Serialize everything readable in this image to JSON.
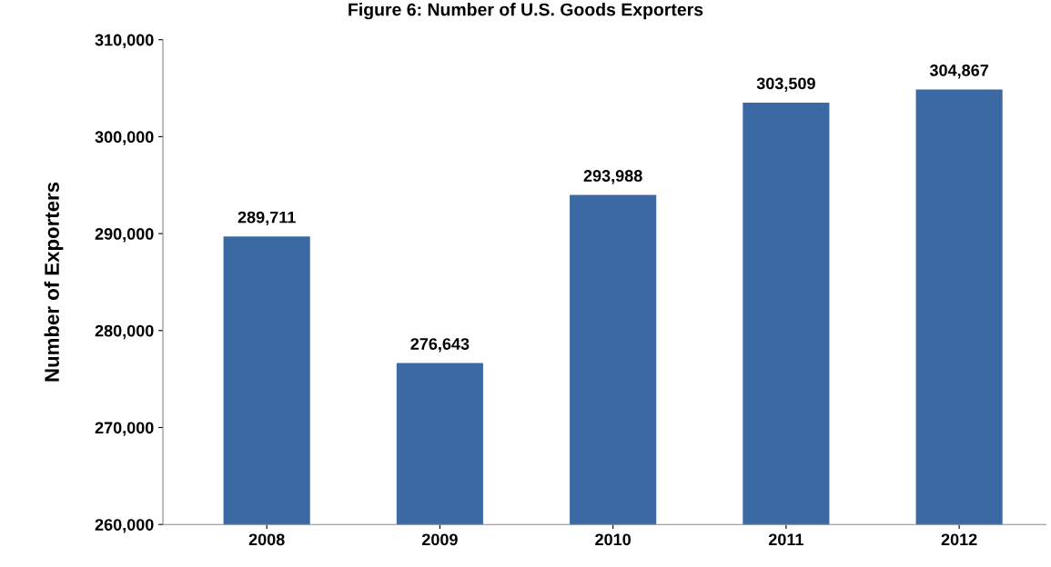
{
  "chart_data": {
    "type": "bar",
    "title": "Figure 6: Number of U.S. Goods Exporters",
    "ylabel": "Number of Exporters",
    "categories": [
      "2008",
      "2009",
      "2010",
      "2011",
      "2012"
    ],
    "values": [
      289711,
      276643,
      293988,
      303509,
      304867
    ],
    "color": "#3a69a3",
    "value_labels": [
      "289,711",
      "276,643",
      "293,988",
      "303,509",
      "304,867"
    ],
    "ylim": [
      260000,
      310000
    ],
    "yticks": [
      {
        "value": 260000,
        "label": "260,000"
      },
      {
        "value": 270000,
        "label": "270,000"
      },
      {
        "value": 280000,
        "label": "280,000"
      },
      {
        "value": 290000,
        "label": "290,000"
      },
      {
        "value": 300000,
        "label": "300,000"
      },
      {
        "value": 310000,
        "label": "310,000"
      }
    ],
    "grid": false,
    "legend": false
  }
}
